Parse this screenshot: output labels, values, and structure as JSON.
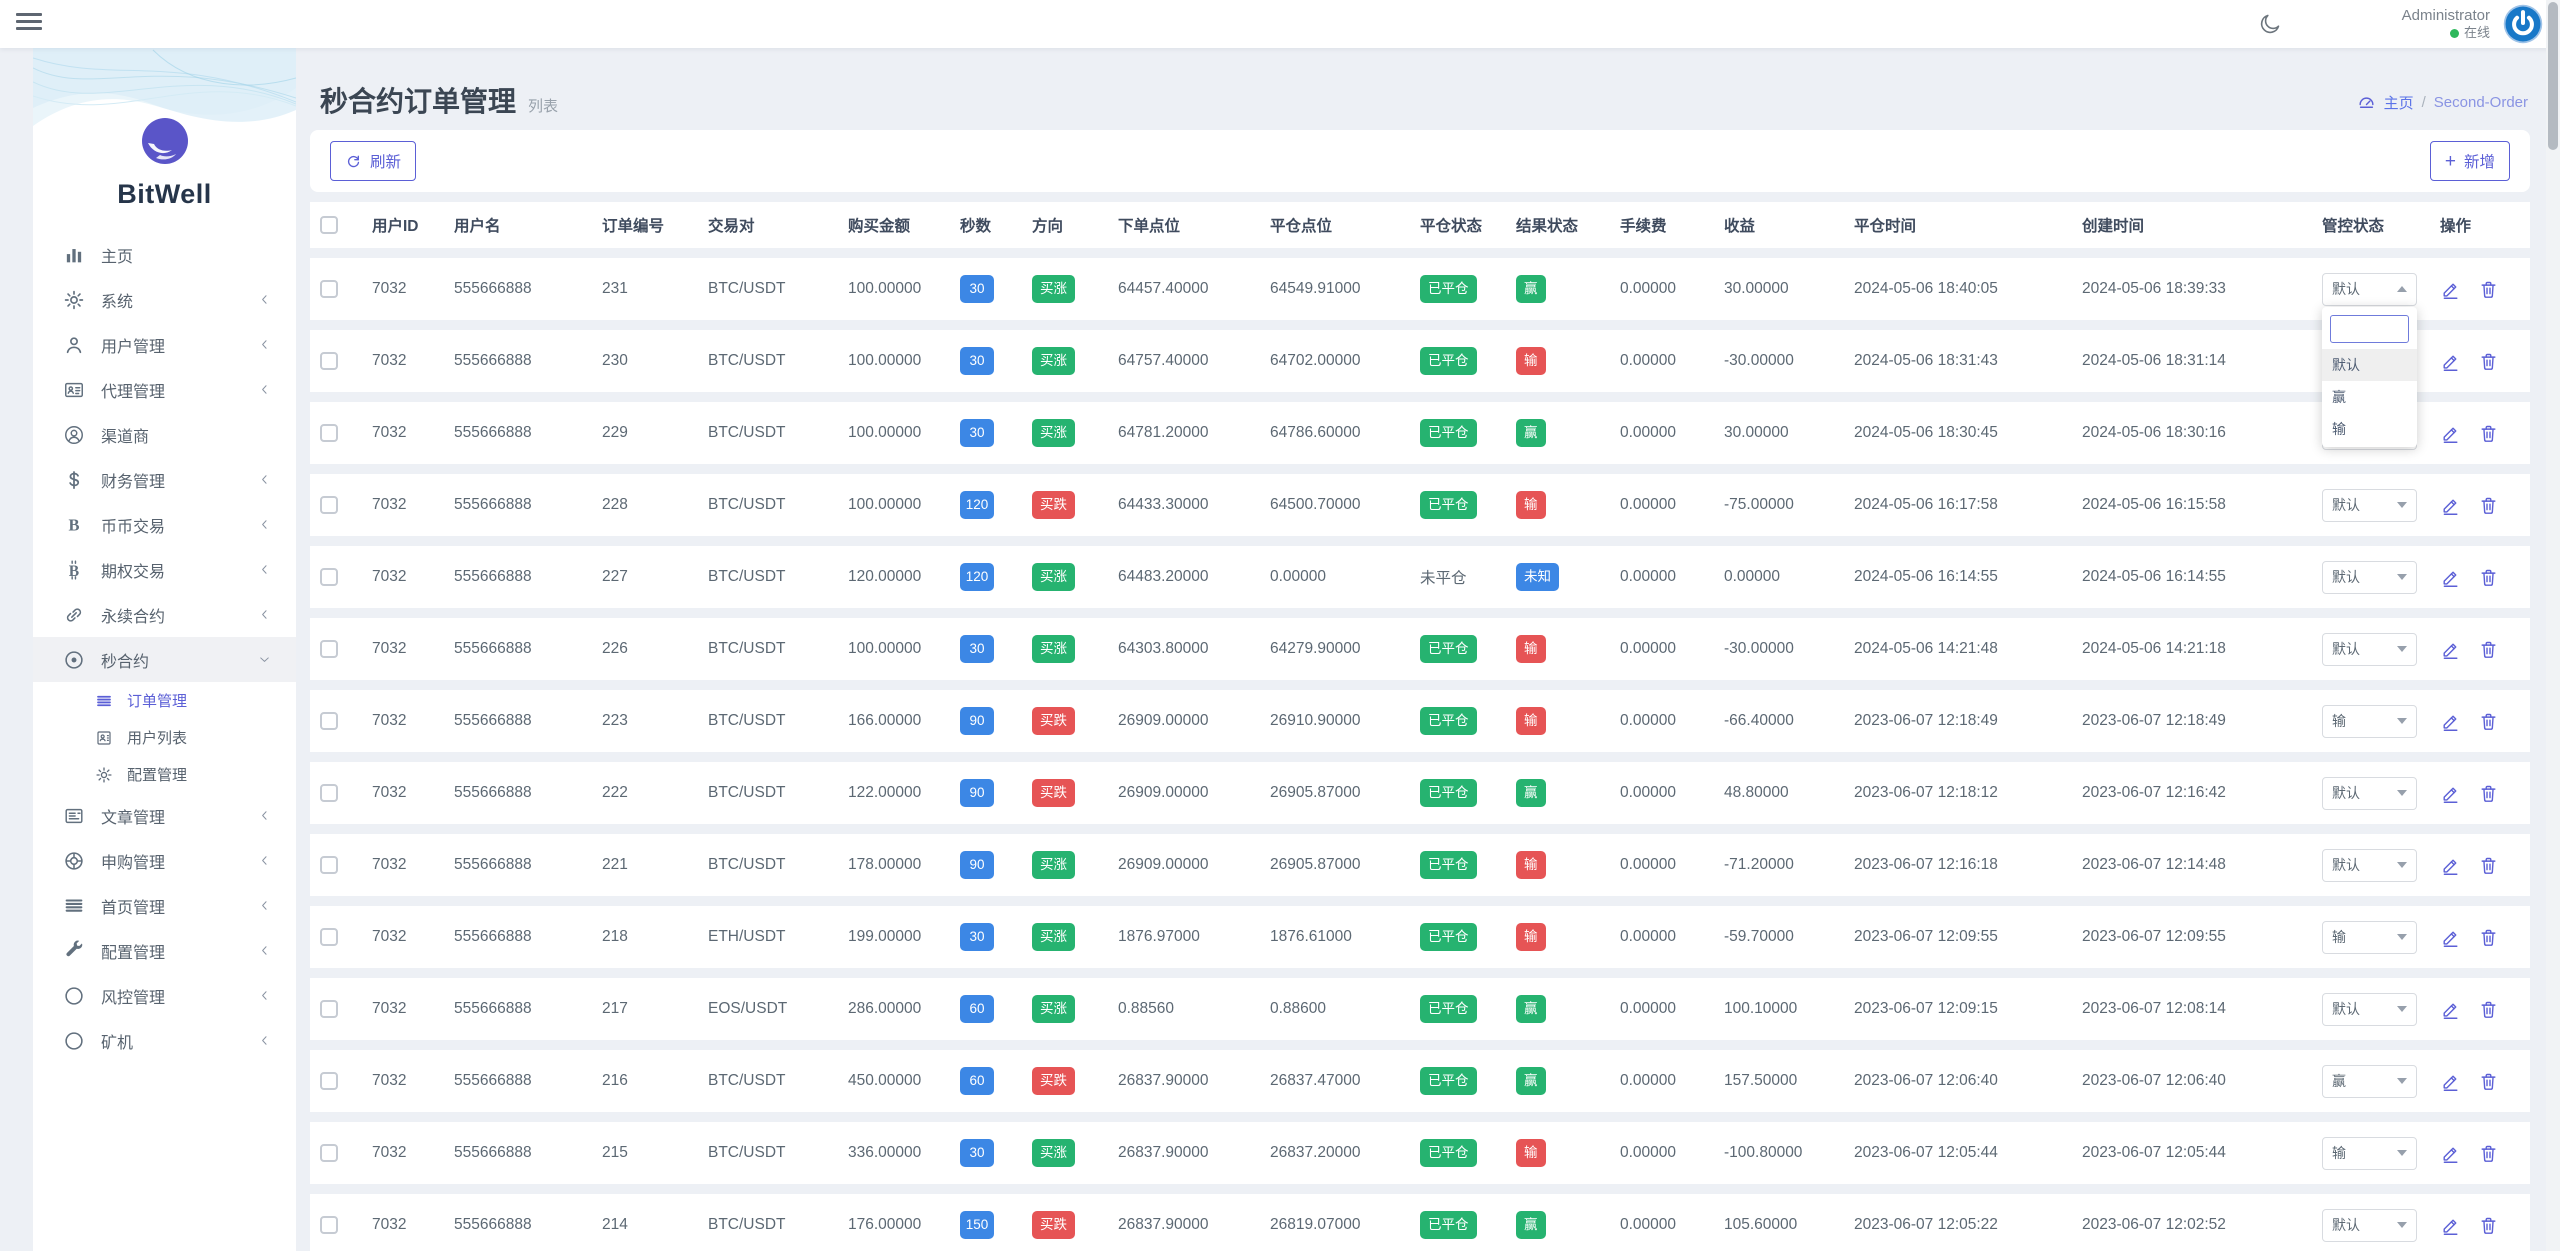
{
  "theme": {
    "accent": "#5b5fd6",
    "breadcrumb_link": "#5b73e8",
    "badge_blue": "#3c87e5",
    "badge_green": "#26b370",
    "badge_red": "#e65455",
    "online_green": "#2eb85c",
    "avatar_blue": "#1878c8",
    "background": "#edf0f5"
  },
  "topbar": {
    "menu_icon": "menu-icon",
    "theme_icon": "moon-icon",
    "user": "Administrator",
    "status": "在线",
    "avatar_icon": "power-icon"
  },
  "sidebar": {
    "brand": "BitWell",
    "items": [
      {
        "icon": "chart-bars",
        "label": "主页",
        "chevron": "none"
      },
      {
        "icon": "gear",
        "label": "系统",
        "chevron": "left"
      },
      {
        "icon": "user",
        "label": "用户管理",
        "chevron": "left"
      },
      {
        "icon": "id-card",
        "label": "代理管理",
        "chevron": "left"
      },
      {
        "icon": "user-circle",
        "label": "渠道商",
        "chevron": "none"
      },
      {
        "icon": "dollar",
        "label": "财务管理",
        "chevron": "left"
      },
      {
        "icon": "letter-b",
        "label": "币币交易",
        "chevron": "left"
      },
      {
        "icon": "bitcoin",
        "label": "期权交易",
        "chevron": "left"
      },
      {
        "icon": "chain",
        "label": "永续合约",
        "chevron": "left"
      },
      {
        "icon": "target",
        "label": "秒合约",
        "chevron": "down",
        "active": true,
        "children": [
          {
            "icon": "list",
            "label": "订单管理",
            "active": true
          },
          {
            "icon": "contact-card",
            "label": "用户列表"
          },
          {
            "icon": "gear",
            "label": "配置管理"
          }
        ]
      },
      {
        "icon": "newspaper",
        "label": "文章管理",
        "chevron": "left"
      },
      {
        "icon": "lifebuoy",
        "label": "申购管理",
        "chevron": "left"
      },
      {
        "icon": "rows",
        "label": "首页管理",
        "chevron": "left"
      },
      {
        "icon": "wrench",
        "label": "配置管理",
        "chevron": "left"
      },
      {
        "icon": "circle",
        "label": "风控管理",
        "chevron": "left"
      },
      {
        "icon": "circle",
        "label": "矿机",
        "chevron": "left"
      }
    ]
  },
  "page": {
    "title": "秒合约订单管理",
    "subtitle": "列表"
  },
  "breadcrumb": {
    "home_icon": "gauge-icon",
    "home_label": "主页",
    "separator": "/",
    "current_label": "Second-Order"
  },
  "toolbar": {
    "refresh_label": "刷新",
    "add_label": "新增",
    "add_plus": "+"
  },
  "dropdown": {
    "search_value": "",
    "options": [
      "默认",
      "赢",
      "输"
    ],
    "highlighted": "默认"
  },
  "table": {
    "columns": [
      "用户ID",
      "用户名",
      "订单编号",
      "交易对",
      "购买金额",
      "秒数",
      "方向",
      "下单点位",
      "平仓点位",
      "平仓状态",
      "结果状态",
      "手续费",
      "收益",
      "平仓时间",
      "创建时间",
      "管控状态",
      "操作"
    ],
    "rows": [
      {
        "user_id": "7032",
        "username": "555666888",
        "order_no": "231",
        "pair": "BTC/USDT",
        "amount": "100.00000",
        "seconds": "30",
        "direction": {
          "label": "买涨",
          "type": "up"
        },
        "open_point": "64457.40000",
        "close_point": "64549.91000",
        "close_status": {
          "label": "已平仓",
          "type": "closed"
        },
        "result": {
          "label": "赢",
          "type": "win"
        },
        "fee": "0.00000",
        "profit": "30.00000",
        "close_time": "2024-05-06 18:40:05",
        "create_time": "2024-05-06 18:39:33",
        "control": {
          "value": "默认",
          "open": true
        }
      },
      {
        "user_id": "7032",
        "username": "555666888",
        "order_no": "230",
        "pair": "BTC/USDT",
        "amount": "100.00000",
        "seconds": "30",
        "direction": {
          "label": "买涨",
          "type": "up"
        },
        "open_point": "64757.40000",
        "close_point": "64702.00000",
        "close_status": {
          "label": "已平仓",
          "type": "closed"
        },
        "result": {
          "label": "输",
          "type": "lose"
        },
        "fee": "0.00000",
        "profit": "-30.00000",
        "close_time": "2024-05-06 18:31:43",
        "create_time": "2024-05-06 18:31:14",
        "control": {
          "value": "默认",
          "open": false
        }
      },
      {
        "user_id": "7032",
        "username": "555666888",
        "order_no": "229",
        "pair": "BTC/USDT",
        "amount": "100.00000",
        "seconds": "30",
        "direction": {
          "label": "买涨",
          "type": "up"
        },
        "open_point": "64781.20000",
        "close_point": "64786.60000",
        "close_status": {
          "label": "已平仓",
          "type": "closed"
        },
        "result": {
          "label": "赢",
          "type": "win"
        },
        "fee": "0.00000",
        "profit": "30.00000",
        "close_time": "2024-05-06 18:30:45",
        "create_time": "2024-05-06 18:30:16",
        "control": {
          "value": "默认",
          "open": false
        }
      },
      {
        "user_id": "7032",
        "username": "555666888",
        "order_no": "228",
        "pair": "BTC/USDT",
        "amount": "100.00000",
        "seconds": "120",
        "direction": {
          "label": "买跌",
          "type": "down"
        },
        "open_point": "64433.30000",
        "close_point": "64500.70000",
        "close_status": {
          "label": "已平仓",
          "type": "closed"
        },
        "result": {
          "label": "输",
          "type": "lose"
        },
        "fee": "0.00000",
        "profit": "-75.00000",
        "close_time": "2024-05-06 16:17:58",
        "create_time": "2024-05-06 16:15:58",
        "control": {
          "value": "默认",
          "open": false
        }
      },
      {
        "user_id": "7032",
        "username": "555666888",
        "order_no": "227",
        "pair": "BTC/USDT",
        "amount": "120.00000",
        "seconds": "120",
        "direction": {
          "label": "买涨",
          "type": "up"
        },
        "open_point": "64483.20000",
        "close_point": "0.00000",
        "close_status": {
          "label": "未平仓",
          "type": "open"
        },
        "result": {
          "label": "未知",
          "type": "unknown"
        },
        "fee": "0.00000",
        "profit": "0.00000",
        "close_time": "2024-05-06 16:14:55",
        "create_time": "2024-05-06 16:14:55",
        "control": {
          "value": "默认",
          "open": false
        }
      },
      {
        "user_id": "7032",
        "username": "555666888",
        "order_no": "226",
        "pair": "BTC/USDT",
        "amount": "100.00000",
        "seconds": "30",
        "direction": {
          "label": "买涨",
          "type": "up"
        },
        "open_point": "64303.80000",
        "close_point": "64279.90000",
        "close_status": {
          "label": "已平仓",
          "type": "closed"
        },
        "result": {
          "label": "输",
          "type": "lose"
        },
        "fee": "0.00000",
        "profit": "-30.00000",
        "close_time": "2024-05-06 14:21:48",
        "create_time": "2024-05-06 14:21:18",
        "control": {
          "value": "默认",
          "open": false
        }
      },
      {
        "user_id": "7032",
        "username": "555666888",
        "order_no": "223",
        "pair": "BTC/USDT",
        "amount": "166.00000",
        "seconds": "90",
        "direction": {
          "label": "买跌",
          "type": "down"
        },
        "open_point": "26909.00000",
        "close_point": "26910.90000",
        "close_status": {
          "label": "已平仓",
          "type": "closed"
        },
        "result": {
          "label": "输",
          "type": "lose"
        },
        "fee": "0.00000",
        "profit": "-66.40000",
        "close_time": "2023-06-07 12:18:49",
        "create_time": "2023-06-07 12:18:49",
        "control": {
          "value": "输",
          "open": false
        }
      },
      {
        "user_id": "7032",
        "username": "555666888",
        "order_no": "222",
        "pair": "BTC/USDT",
        "amount": "122.00000",
        "seconds": "90",
        "direction": {
          "label": "买跌",
          "type": "down"
        },
        "open_point": "26909.00000",
        "close_point": "26905.87000",
        "close_status": {
          "label": "已平仓",
          "type": "closed"
        },
        "result": {
          "label": "赢",
          "type": "win"
        },
        "fee": "0.00000",
        "profit": "48.80000",
        "close_time": "2023-06-07 12:18:12",
        "create_time": "2023-06-07 12:16:42",
        "control": {
          "value": "默认",
          "open": false
        }
      },
      {
        "user_id": "7032",
        "username": "555666888",
        "order_no": "221",
        "pair": "BTC/USDT",
        "amount": "178.00000",
        "seconds": "90",
        "direction": {
          "label": "买涨",
          "type": "up"
        },
        "open_point": "26909.00000",
        "close_point": "26905.87000",
        "close_status": {
          "label": "已平仓",
          "type": "closed"
        },
        "result": {
          "label": "输",
          "type": "lose"
        },
        "fee": "0.00000",
        "profit": "-71.20000",
        "close_time": "2023-06-07 12:16:18",
        "create_time": "2023-06-07 12:14:48",
        "control": {
          "value": "默认",
          "open": false
        }
      },
      {
        "user_id": "7032",
        "username": "555666888",
        "order_no": "218",
        "pair": "ETH/USDT",
        "amount": "199.00000",
        "seconds": "30",
        "direction": {
          "label": "买涨",
          "type": "up"
        },
        "open_point": "1876.97000",
        "close_point": "1876.61000",
        "close_status": {
          "label": "已平仓",
          "type": "closed"
        },
        "result": {
          "label": "输",
          "type": "lose"
        },
        "fee": "0.00000",
        "profit": "-59.70000",
        "close_time": "2023-06-07 12:09:55",
        "create_time": "2023-06-07 12:09:55",
        "control": {
          "value": "输",
          "open": false
        }
      },
      {
        "user_id": "7032",
        "username": "555666888",
        "order_no": "217",
        "pair": "EOS/USDT",
        "amount": "286.00000",
        "seconds": "60",
        "direction": {
          "label": "买涨",
          "type": "up"
        },
        "open_point": "0.88560",
        "close_point": "0.88600",
        "close_status": {
          "label": "已平仓",
          "type": "closed"
        },
        "result": {
          "label": "赢",
          "type": "win"
        },
        "fee": "0.00000",
        "profit": "100.10000",
        "close_time": "2023-06-07 12:09:15",
        "create_time": "2023-06-07 12:08:14",
        "control": {
          "value": "默认",
          "open": false
        }
      },
      {
        "user_id": "7032",
        "username": "555666888",
        "order_no": "216",
        "pair": "BTC/USDT",
        "amount": "450.00000",
        "seconds": "60",
        "direction": {
          "label": "买跌",
          "type": "down"
        },
        "open_point": "26837.90000",
        "close_point": "26837.47000",
        "close_status": {
          "label": "已平仓",
          "type": "closed"
        },
        "result": {
          "label": "赢",
          "type": "win"
        },
        "fee": "0.00000",
        "profit": "157.50000",
        "close_time": "2023-06-07 12:06:40",
        "create_time": "2023-06-07 12:06:40",
        "control": {
          "value": "赢",
          "open": false
        }
      },
      {
        "user_id": "7032",
        "username": "555666888",
        "order_no": "215",
        "pair": "BTC/USDT",
        "amount": "336.00000",
        "seconds": "30",
        "direction": {
          "label": "买涨",
          "type": "up"
        },
        "open_point": "26837.90000",
        "close_point": "26837.20000",
        "close_status": {
          "label": "已平仓",
          "type": "closed"
        },
        "result": {
          "label": "输",
          "type": "lose"
        },
        "fee": "0.00000",
        "profit": "-100.80000",
        "close_time": "2023-06-07 12:05:44",
        "create_time": "2023-06-07 12:05:44",
        "control": {
          "value": "输",
          "open": false
        }
      },
      {
        "user_id": "7032",
        "username": "555666888",
        "order_no": "214",
        "pair": "BTC/USDT",
        "amount": "176.00000",
        "seconds": "150",
        "direction": {
          "label": "买跌",
          "type": "down"
        },
        "open_point": "26837.90000",
        "close_point": "26819.07000",
        "close_status": {
          "label": "已平仓",
          "type": "closed"
        },
        "result": {
          "label": "赢",
          "type": "win"
        },
        "fee": "0.00000",
        "profit": "105.60000",
        "close_time": "2023-06-07 12:05:22",
        "create_time": "2023-06-07 12:02:52",
        "control": {
          "value": "默认",
          "open": false
        }
      }
    ]
  }
}
